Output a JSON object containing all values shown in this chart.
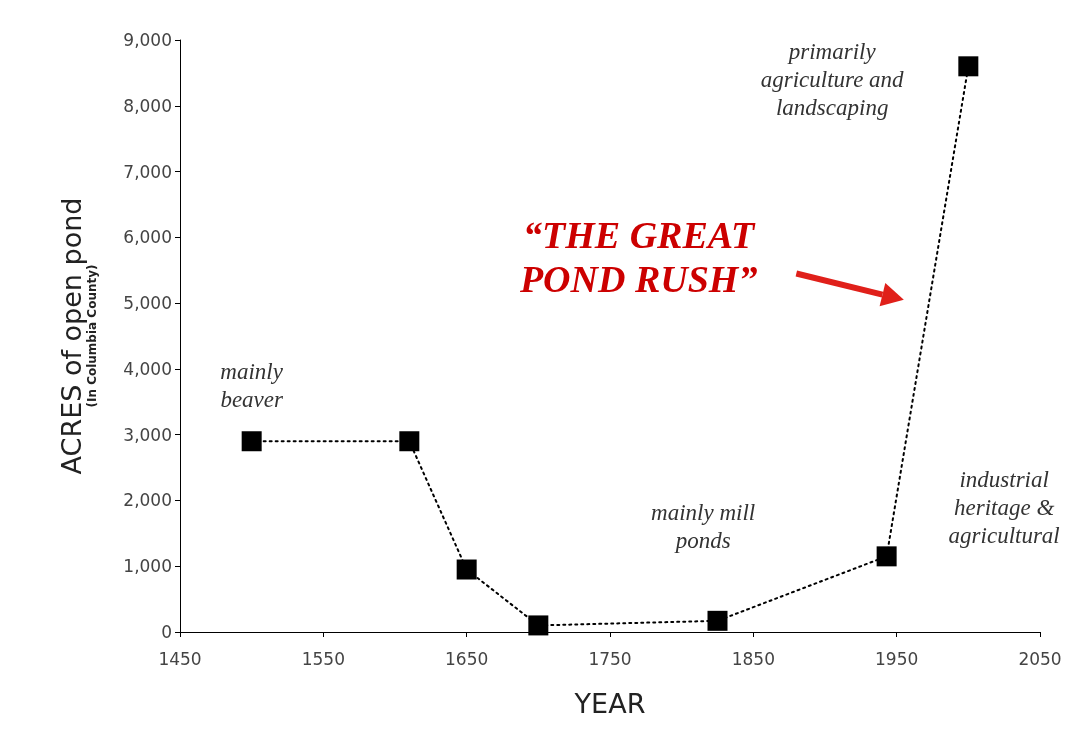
{
  "chart_data": {
    "type": "line",
    "xlabel": "YEAR",
    "ylabel": "ACRES of open pond\n(In Columbia County)",
    "x": [
      1500,
      1610,
      1650,
      1700,
      1825,
      1943,
      2000
    ],
    "series": [
      {
        "color": "#000000",
        "values": [
          2900,
          2900,
          950,
          100,
          170,
          1150,
          8600
        ]
      }
    ],
    "xlim": [
      1450,
      2050
    ],
    "xticks": [
      1450,
      1550,
      1650,
      1750,
      1850,
      1950,
      2050
    ],
    "ylim": [
      0,
      9000
    ],
    "yticks": [
      {
        "value": 0,
        "label": "0"
      },
      {
        "value": 1000,
        "label": "1,000"
      },
      {
        "value": 2000,
        "label": "2,000"
      },
      {
        "value": 3000,
        "label": "3,000"
      },
      {
        "value": 4000,
        "label": "4,000"
      },
      {
        "value": 5000,
        "label": "5,000"
      },
      {
        "value": 6000,
        "label": "6,000"
      },
      {
        "value": 7000,
        "label": "7,000"
      },
      {
        "value": 8000,
        "label": "8,000"
      },
      {
        "value": 9000,
        "label": "9,000"
      }
    ],
    "annotations": [
      "mainly\nbeaver",
      "mainly mill\nponds",
      "industrial\nheritage &\nagricultural",
      "primarily\nagriculture and\nlandscaping",
      "“THE GREAT\nPOND RUSH”"
    ],
    "marker": "square",
    "line_style": "dotted"
  }
}
